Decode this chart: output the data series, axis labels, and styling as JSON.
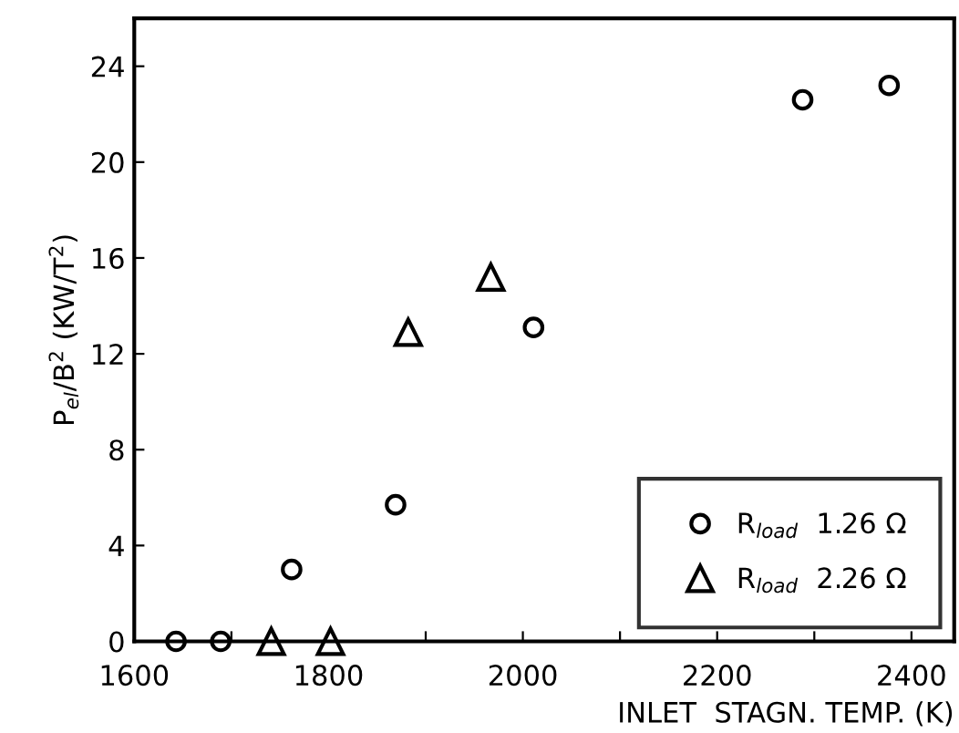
{
  "chart_data": {
    "type": "scatter",
    "xlabel": "INLET  STAGN. TEMP. (K)",
    "ylabel": "P$_{el}$/B$^{2}$ (KW/T$^{2}$)",
    "xlim": [
      1600,
      2444
    ],
    "ylim": [
      0,
      26
    ],
    "xticks": [
      1600,
      {
        "value": 1700,
        "label": null
      },
      1800,
      {
        "value": 1900,
        "label": null
      },
      2000,
      {
        "value": 2100,
        "label": null
      },
      2200,
      {
        "value": 2300,
        "label": null
      },
      2400
    ],
    "yticks": [
      0,
      4,
      8,
      12,
      16,
      20,
      24
    ],
    "grid": false,
    "legend": "bottom right",
    "series": [
      {
        "name": "R$_{load}$  1.26 Ω",
        "color": "#000000",
        "marker": "circle",
        "x": [
          1643,
          1689,
          1762,
          1869,
          2011,
          2288,
          2377
        ],
        "values": [
          0,
          0,
          3.0,
          5.7,
          13.1,
          22.6,
          23.2
        ]
      },
      {
        "name": "R$_{load}$  2.26 Ω",
        "color": "#000000",
        "marker": "triangle",
        "x": [
          1741,
          1802,
          1882,
          1967
        ],
        "values": [
          0,
          0,
          12.9,
          15.2
        ]
      }
    ]
  }
}
